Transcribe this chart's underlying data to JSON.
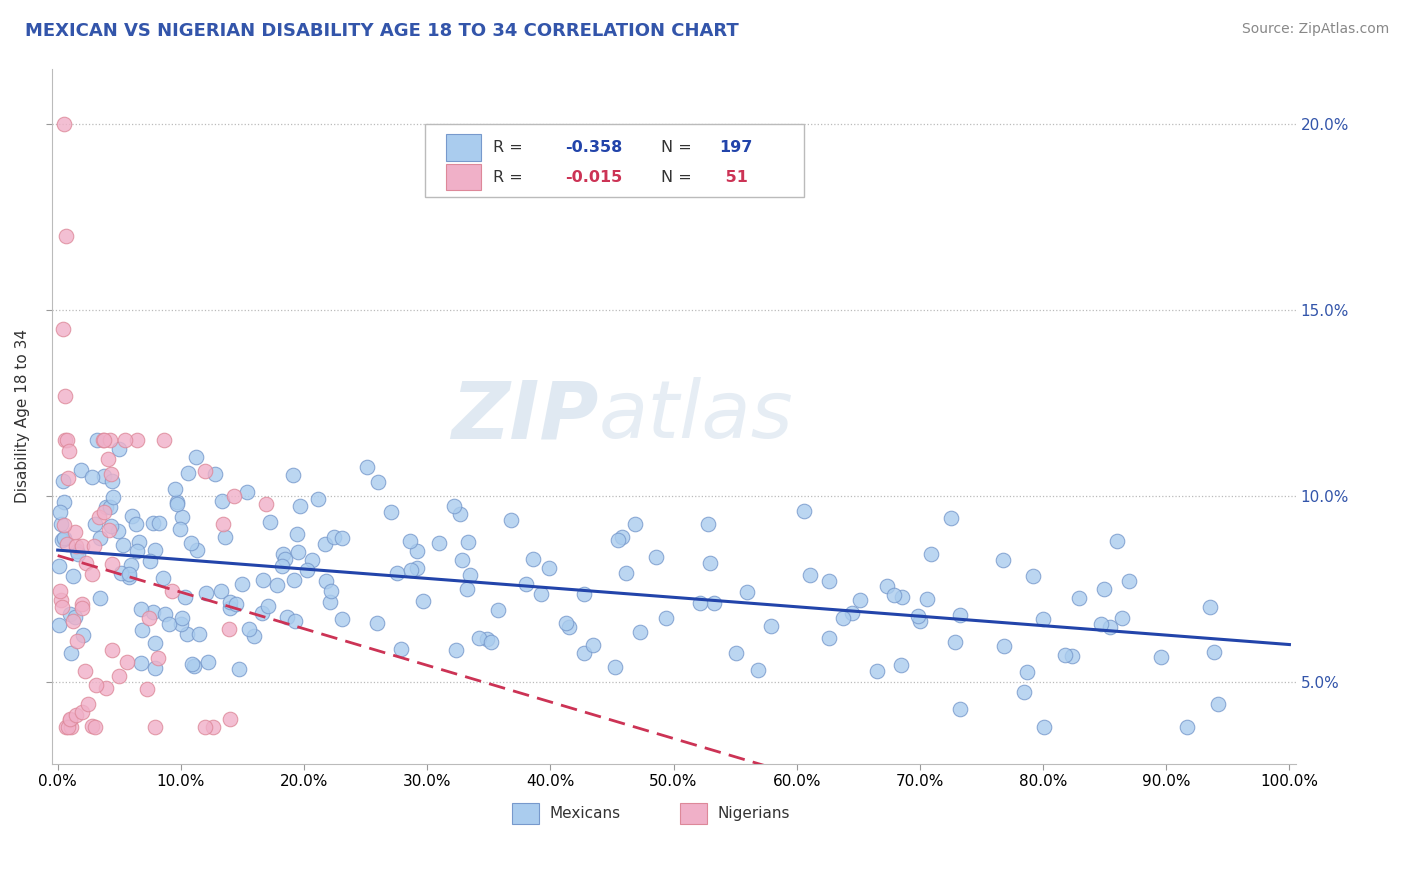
{
  "title": "MEXICAN VS NIGERIAN DISABILITY AGE 18 TO 34 CORRELATION CHART",
  "source_text": "Source: ZipAtlas.com",
  "ylabel": "Disability Age 18 to 34",
  "xlabel": "",
  "xlim": [
    -0.005,
    1.005
  ],
  "ylim": [
    0.028,
    0.215
  ],
  "xticks": [
    0.0,
    0.1,
    0.2,
    0.3,
    0.4,
    0.5,
    0.6,
    0.7,
    0.8,
    0.9,
    1.0
  ],
  "xticklabels": [
    "0.0%",
    "10.0%",
    "20.0%",
    "30.0%",
    "40.0%",
    "50.0%",
    "60.0%",
    "70.0%",
    "80.0%",
    "90.0%",
    "100.0%"
  ],
  "yticks_right": [
    0.05,
    0.1,
    0.15,
    0.2
  ],
  "yticklabels_right": [
    "5.0%",
    "10.0%",
    "15.0%",
    "20.0%"
  ],
  "blue_color": "#aaccee",
  "blue_edge_color": "#7799cc",
  "pink_color": "#f0b0c8",
  "pink_edge_color": "#dd8899",
  "blue_line_color": "#2244aa",
  "pink_line_color": "#cc3355",
  "watermark_top": "ZIP",
  "watermark_bot": "atlas",
  "title_color": "#3355aa",
  "title_fontsize": 13,
  "source_fontsize": 10,
  "mexican_R": -0.358,
  "mexican_N": 197,
  "nigerian_R": -0.015,
  "nigerian_N": 51,
  "background_color": "#ffffff",
  "grid_color": "#bbbbbb",
  "legend_box_color": "#ffffff",
  "legend_border_color": "#bbbbbb"
}
